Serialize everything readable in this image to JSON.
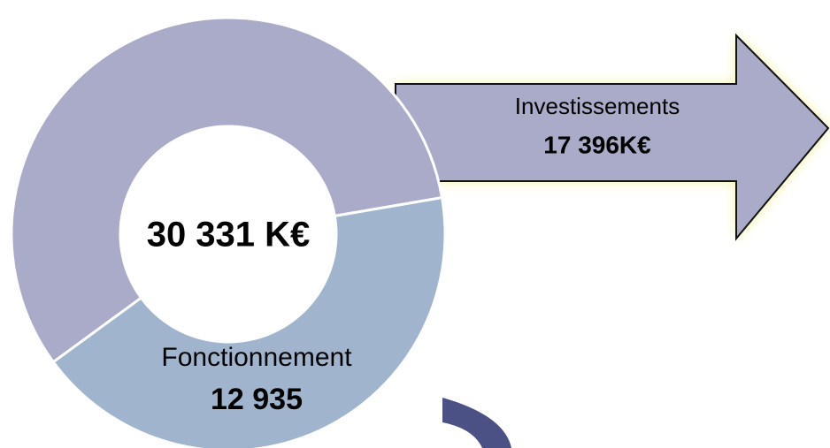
{
  "chart_data": {
    "type": "donut",
    "center_label": "30 331 K€",
    "categories": [
      "Investissements",
      "Fonctionnement"
    ],
    "values": [
      17396,
      12935
    ],
    "value_labels": [
      "17 396K€",
      "12 935"
    ],
    "colors": [
      "#a9abc8",
      "#a0b5cd"
    ]
  }
}
